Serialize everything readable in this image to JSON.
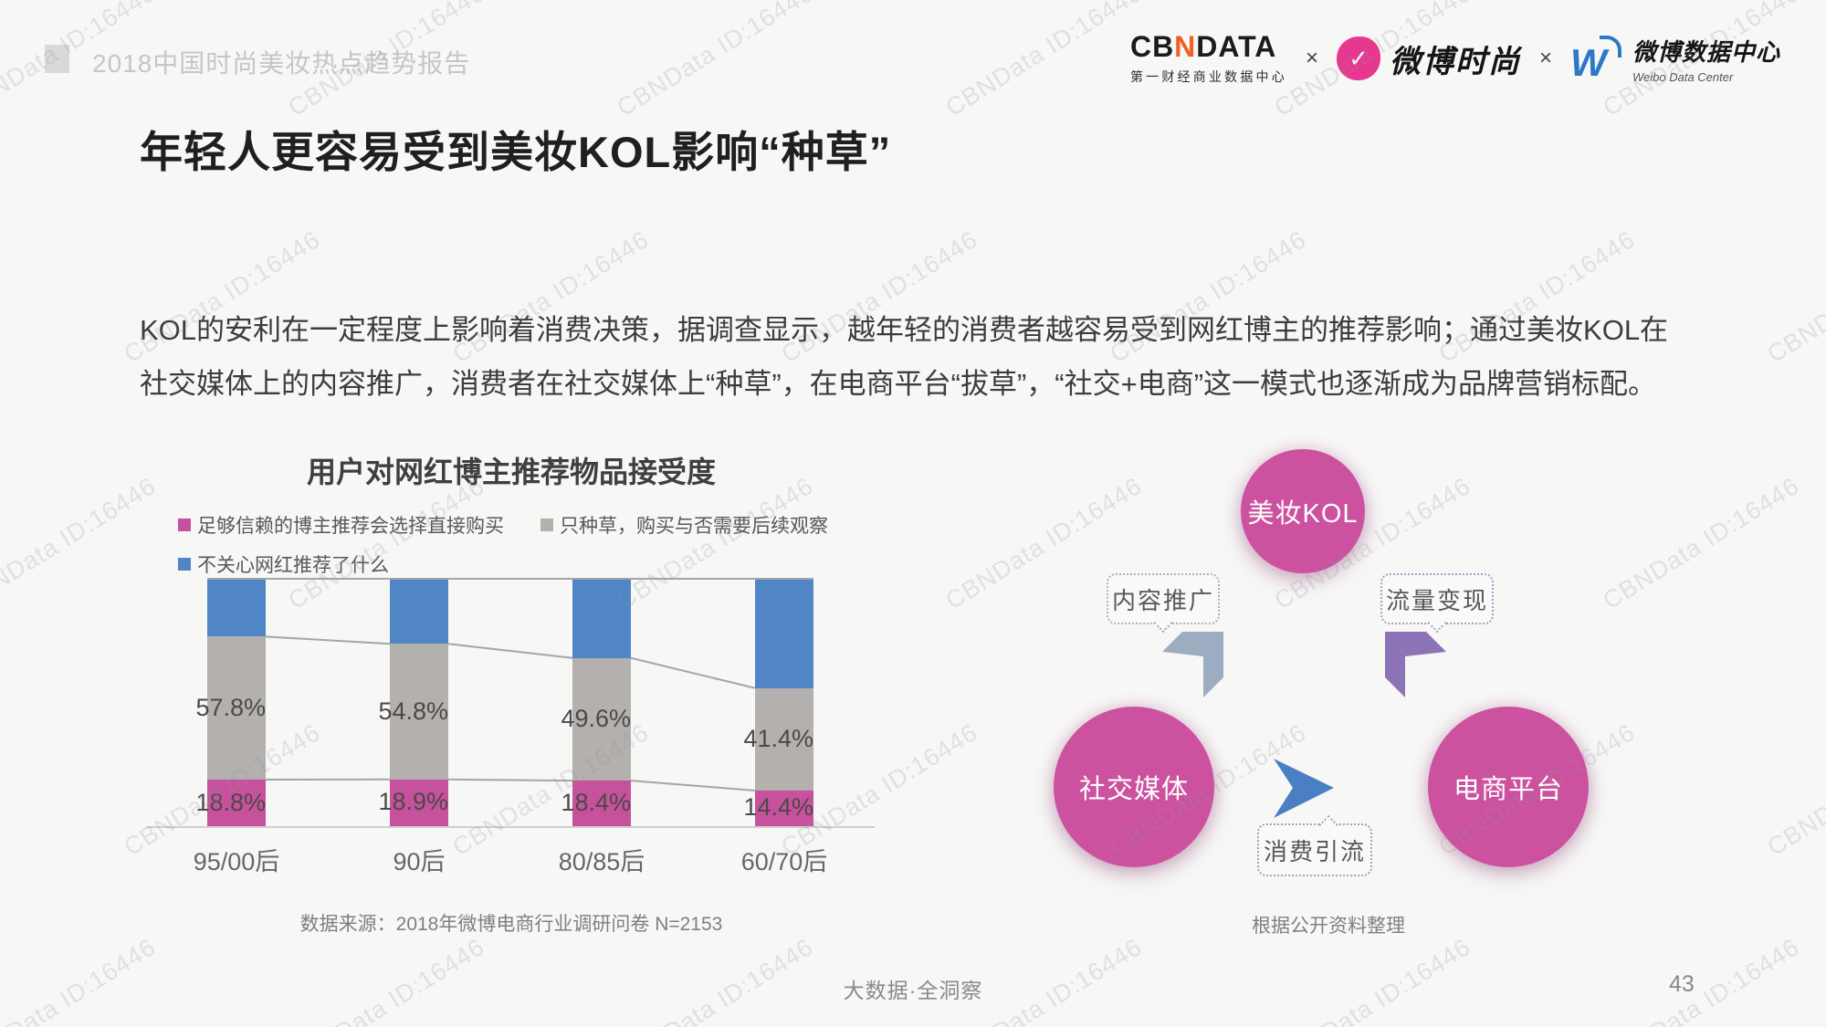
{
  "header": {
    "report_title": "2018中国时尚美妆热点趋势报告",
    "separator": "×",
    "logos": {
      "cbndata": {
        "prefix": "CB",
        "n": "N",
        "suffix": "DATA",
        "subtitle": "第一财经商业数据中心"
      },
      "weibo_fashion": {
        "name": "微博时尚",
        "glyph": "✓"
      },
      "weibo_data_center": {
        "name": "微博数据中心",
        "subtitle": "Weibo Data Center",
        "glyph": "W"
      }
    }
  },
  "title": "年轻人更容易受到美妆KOL影响“种草”",
  "body": "KOL的安利在一定程度上影响着消费决策，据调查显示，越年轻的消费者越容易受到网红博主的推荐影响；通过美妆KOL在社交媒体上的内容推广，消费者在社交媒体上“种草”，在电商平台“拔草”，“社交+电商”这一模式也逐渐成为品牌营销标配。",
  "chart_data": {
    "type": "bar",
    "stacked": true,
    "title": "用户对网红博主推荐物品接受度",
    "categories": [
      "95/00后",
      "90后",
      "80/85后",
      "60/70后"
    ],
    "series": [
      {
        "name": "足够信赖的博主推荐会选择直接购买",
        "color": "#c6519c",
        "values": [
          18.8,
          18.9,
          18.4,
          14.4
        ],
        "labels": [
          "18.8%",
          "18.9%",
          "18.4%",
          "14.4%"
        ],
        "show_labels": true
      },
      {
        "name": "只种草，购买与否需要后续观察",
        "color": "#b3b0ae",
        "values": [
          57.8,
          54.8,
          49.6,
          41.4
        ],
        "labels": [
          "57.8%",
          "54.8%",
          "49.6%",
          "41.4%"
        ],
        "show_labels": true
      },
      {
        "name": "不关心网红推荐了什么",
        "color": "#5085c6",
        "values": [
          23.4,
          26.3,
          32.0,
          44.2
        ],
        "show_labels": false
      }
    ],
    "ylim": [
      0,
      100
    ],
    "legend_position": "top-left",
    "source": "数据来源：2018年微博电商行业调研问卷 N=2153"
  },
  "diagram": {
    "nodes": [
      {
        "label": "美妆KOL"
      },
      {
        "label": "社交媒体"
      },
      {
        "label": "电商平台"
      }
    ],
    "bubbles": [
      {
        "label": "内容推广"
      },
      {
        "label": "流量变现"
      },
      {
        "label": "消费引流"
      }
    ],
    "source": "根据公开资料整理"
  },
  "footer": {
    "slogan": "大数据·全洞察",
    "page_number": "43"
  },
  "watermark": {
    "text": "CBNData ID:16446"
  }
}
